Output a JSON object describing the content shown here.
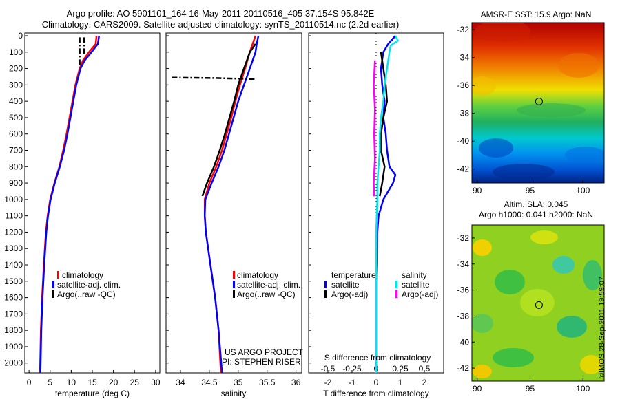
{
  "header": {
    "title_line1": "Argo profile: AO 5901101_164 16-May-2011 20110516_405 37.154S 95.842E",
    "title_line2": "Climatology: CARS2009. Satellite-adjusted climatology: synTS_20110514.nc (2.2d earlier)"
  },
  "credits": {
    "project": "US ARGO PROJECT",
    "pi": "PI: STEPHEN RISER",
    "watermark": "©IMOS 28-Sep-2011 19:59:07"
  },
  "colors": {
    "climatology": "#ff0000",
    "satellite": "#0000ff",
    "argo": "#000000",
    "salinity_satellite": "#00e5ee",
    "salinity_argo": "#ff00ff"
  },
  "chart_data": [
    {
      "type": "line",
      "id": "temperature",
      "xlabel": "temperature (deg C)",
      "ylabel": "",
      "xlim": [
        -1,
        31
      ],
      "ylim": [
        2060,
        0
      ],
      "xticks": [
        0,
        5,
        10,
        15,
        20,
        25,
        30
      ],
      "yticks": [
        0,
        100,
        200,
        300,
        400,
        500,
        600,
        700,
        800,
        900,
        1000,
        1100,
        1200,
        1300,
        1400,
        1500,
        1600,
        1700,
        1800,
        1900,
        2000
      ],
      "legend": [
        "climatology",
        "satellite-adj. clim.",
        "Argo(..raw -QC)"
      ],
      "series": [
        {
          "name": "climatology",
          "depth": [
            0,
            50,
            100,
            150,
            200,
            300,
            400,
            500,
            600,
            700,
            800,
            900,
            1000,
            1100,
            1200,
            1400,
            1600,
            1800,
            2060
          ],
          "values": [
            16.0,
            15.8,
            14.2,
            12.8,
            12.0,
            11.0,
            10.3,
            9.6,
            8.9,
            8.1,
            7.2,
            6.0,
            5.0,
            4.4,
            4.0,
            3.5,
            3.1,
            2.8,
            2.6
          ]
        },
        {
          "name": "satellite-adj. clim.",
          "depth": [
            0,
            50,
            100,
            150,
            200,
            300,
            400,
            500,
            600,
            700,
            800,
            900,
            1000,
            1100,
            1200,
            1400,
            1600,
            1800,
            2060
          ],
          "values": [
            16.6,
            16.3,
            14.8,
            13.2,
            12.2,
            11.2,
            10.5,
            9.8,
            9.1,
            8.3,
            7.3,
            6.1,
            5.1,
            4.5,
            4.1,
            3.6,
            3.2,
            2.9,
            2.7
          ]
        },
        {
          "name": "Argo(..raw -QC)",
          "depth": [
            10,
            180
          ],
          "values": [
            12.0,
            12.0
          ],
          "dash": true
        },
        {
          "name": "Argo(..raw -QC)",
          "depth": [
            10,
            120
          ],
          "values": [
            13.0,
            13.0
          ],
          "dash": true
        }
      ]
    },
    {
      "type": "line",
      "id": "salinity",
      "xlabel": "salinity",
      "ylabel": "",
      "xlim": [
        33.75,
        36.1
      ],
      "ylim": [
        2060,
        0
      ],
      "xticks": [
        34,
        34.5,
        35,
        35.5,
        36
      ],
      "legend": [
        "climatology",
        "satellite-adj. clim.",
        "Argo(..raw -QC)"
      ],
      "series": [
        {
          "name": "climatology",
          "depth": [
            0,
            50,
            100,
            200,
            300,
            400,
            500,
            600,
            700,
            800,
            900,
            1000,
            1100,
            1200,
            1400,
            1600,
            1800,
            2060
          ],
          "values": [
            35.3,
            35.25,
            35.2,
            35.12,
            35.03,
            34.95,
            34.88,
            34.8,
            34.72,
            34.62,
            34.5,
            34.42,
            34.42,
            34.44,
            34.52,
            34.6,
            34.66,
            34.7
          ]
        },
        {
          "name": "satellite-adj. clim.",
          "depth": [
            0,
            50,
            100,
            200,
            300,
            400,
            500,
            600,
            700,
            800,
            900,
            1000,
            1100,
            1200,
            1400,
            1600,
            1800,
            2060
          ],
          "values": [
            35.35,
            35.32,
            35.3,
            35.2,
            35.1,
            35.0,
            34.92,
            34.84,
            34.76,
            34.66,
            34.54,
            34.43,
            34.42,
            34.44,
            34.52,
            34.6,
            34.66,
            34.72
          ]
        },
        {
          "name": "Argo(..raw -QC)",
          "depth": [
            50,
            100,
            200,
            300,
            400,
            500,
            600,
            700,
            800,
            900,
            980
          ],
          "values": [
            35.3,
            35.2,
            35.1,
            35.0,
            34.93,
            34.85,
            34.77,
            34.68,
            34.58,
            34.46,
            34.38
          ]
        },
        {
          "name": "Argo(..raw -QC)",
          "depth": [
            255,
            258,
            265
          ],
          "values": [
            33.85,
            34.6,
            35.3
          ],
          "dash": true
        }
      ]
    },
    {
      "type": "line",
      "id": "differences",
      "xlabel": "T difference from climatology",
      "xlabel_top": "S difference from climatology",
      "xlim": [
        -2.8,
        2.8
      ],
      "ylim": [
        2060,
        0
      ],
      "xticks": [
        -2,
        -1,
        0,
        1,
        2
      ],
      "xticks_s_labels": [
        "-0.5",
        "-0.25",
        "0",
        "0.25",
        "0.5"
      ],
      "legend_titles": [
        "temperature",
        "salinity"
      ],
      "legend": [
        "satellite",
        "Argo(-adj)",
        "satellite",
        "Argo(-adj)"
      ],
      "series": [
        {
          "name": "satellite",
          "depth": [
            0,
            50,
            100,
            200,
            300,
            400,
            500,
            600,
            700,
            800,
            850,
            900,
            950,
            1000,
            1100,
            1200,
            1500,
            2060
          ],
          "values": [
            0.8,
            0.5,
            0.3,
            0.2,
            0.25,
            0.35,
            0.3,
            0.4,
            0.45,
            0.55,
            0.8,
            0.7,
            0.5,
            0.3,
            0.1,
            0.05,
            0.0,
            0.0
          ]
        },
        {
          "name": "Argo(-adj)",
          "depth": [
            100,
            200,
            300,
            400,
            500,
            600,
            700,
            800,
            900,
            980
          ],
          "values": [
            0.2,
            0.3,
            0.4,
            0.45,
            0.3,
            0.2,
            0.2,
            0.35,
            0.25,
            0.15
          ]
        },
        {
          "name": "satellite",
          "depth": [
            0,
            30,
            60,
            100,
            200,
            300,
            400,
            500,
            600,
            700,
            800,
            900,
            1000,
            1200,
            1500,
            2060
          ],
          "values": [
            0.8,
            0.9,
            0.6,
            0.55,
            0.45,
            0.35,
            0.3,
            0.2,
            0.15,
            0.15,
            0.1,
            0.05,
            0.05,
            0.0,
            0.0,
            0.0
          ]
        },
        {
          "name": "Argo(-adj)",
          "depth": [
            150,
            300,
            450,
            600,
            750,
            900,
            980
          ],
          "values": [
            -0.05,
            -0.1,
            -0.05,
            -0.08,
            -0.05,
            -0.1,
            -0.08
          ]
        }
      ]
    },
    {
      "type": "heatmap",
      "id": "sst",
      "title": "AMSR-E SST: 15.9 Argo: NaN",
      "xlim": [
        89.5,
        102
      ],
      "ylim": [
        -43,
        -31.5
      ],
      "xticks": [
        90,
        95,
        100
      ],
      "yticks": [
        -32,
        -34,
        -36,
        -38,
        -40,
        -42
      ],
      "marker": [
        95.84,
        -37.15
      ]
    },
    {
      "type": "heatmap",
      "id": "sla",
      "title_line1": "Altim. SLA: 0.045",
      "title_line2": "Argo h1000: 0.041 h2000: NaN",
      "xlim": [
        89.5,
        102
      ],
      "ylim": [
        -43,
        -31
      ],
      "xticks": [
        90,
        95,
        100
      ],
      "yticks": [
        -32,
        -34,
        -36,
        -38,
        -40,
        -42
      ],
      "marker": [
        95.84,
        -37.15
      ]
    }
  ]
}
